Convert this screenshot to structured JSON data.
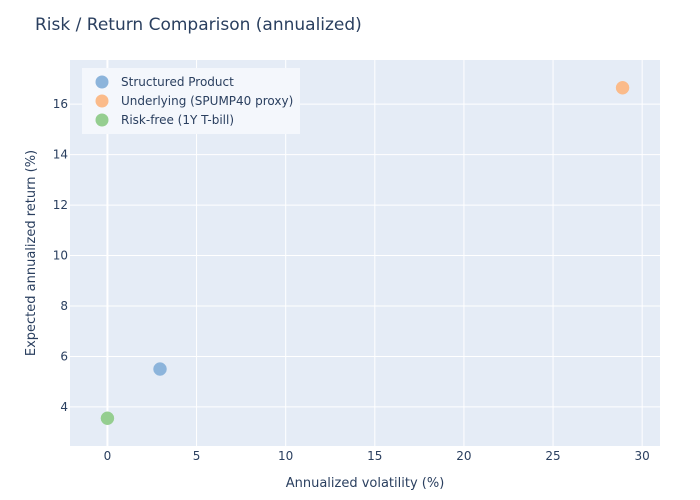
{
  "chart_data": {
    "type": "scatter",
    "title": "Risk / Return Comparison (annualized)",
    "xlabel": "Annualized volatility (%)",
    "ylabel": "Expected annualized return (%)",
    "xlim": [
      -2.1,
      31.0
    ],
    "ylim": [
      2.45,
      17.75
    ],
    "xticks": [
      0,
      5,
      10,
      15,
      20,
      25,
      30
    ],
    "yticks": [
      4,
      6,
      8,
      10,
      12,
      14,
      16
    ],
    "grid": true,
    "legend_position": "top-left",
    "series": [
      {
        "name": "Structured Product",
        "color": "#8cb4db",
        "points": [
          {
            "x": 2.95,
            "y": 5.5
          }
        ]
      },
      {
        "name": "Underlying (SPUMP40 proxy)",
        "color": "#fbbb8a",
        "points": [
          {
            "x": 28.9,
            "y": 16.65
          }
        ]
      },
      {
        "name": "Risk-free (1Y T-bill)",
        "color": "#95ce90",
        "points": [
          {
            "x": 0.0,
            "y": 3.55
          }
        ]
      }
    ],
    "colors": {
      "plot_background": "#e5ecf6",
      "grid": "#ffffff",
      "text": "#2a3f5f",
      "legend_background": "#f4f7fc"
    }
  }
}
